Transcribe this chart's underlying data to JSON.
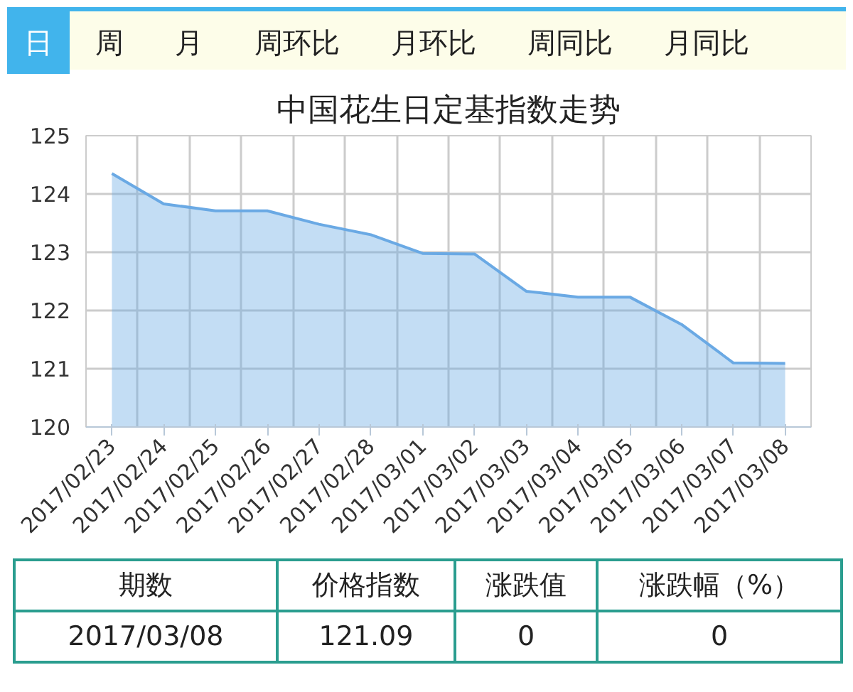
{
  "chart_data": {
    "type": "area",
    "title": "中国花生日定基指数走势",
    "categories": [
      "2017/02/23",
      "2017/02/24",
      "2017/02/25",
      "2017/02/26",
      "2017/02/27",
      "2017/02/28",
      "2017/03/01",
      "2017/03/02",
      "2017/03/03",
      "2017/03/04",
      "2017/03/05",
      "2017/03/06",
      "2017/03/07",
      "2017/03/08"
    ],
    "series": [
      {
        "color": "#6aa9e4",
        "values": [
          124.35,
          123.83,
          123.71,
          123.71,
          123.48,
          123.3,
          122.98,
          122.97,
          122.33,
          122.23,
          122.23,
          121.76,
          121.1,
          121.09
        ]
      }
    ],
    "ylim": [
      120,
      125
    ],
    "yticks": [
      120,
      121,
      122,
      123,
      124,
      125
    ],
    "grid": true,
    "annotations": [
      "日",
      "周",
      "月",
      "周环比",
      "月环比",
      "周同比",
      "月同比",
      "期数",
      "价格指数",
      "涨跌值",
      "涨跌幅（%）",
      "2017/03/08",
      "121.09",
      "0",
      "0"
    ]
  }
}
